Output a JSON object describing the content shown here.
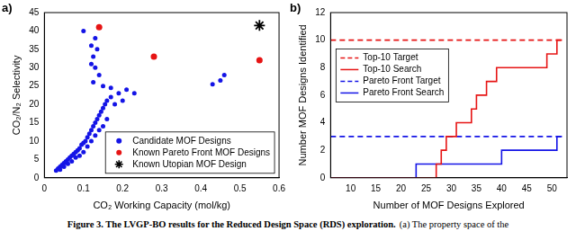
{
  "caption": {
    "bold": "Figure 3. The LVGP-BO results for the Reduced Design Space (RDS) exploration.",
    "text": "(a) The property space of the"
  },
  "chart_data": [
    {
      "type": "scatter",
      "panel_label": "a)",
      "x_label": "CO₂ Working Capacity (mol/kg)",
      "y_label": "CO₂/N₂ Selectivity",
      "xlim": [
        0,
        0.6
      ],
      "xticks": [
        0,
        0.1,
        0.2,
        0.3,
        0.4,
        0.5,
        0.6
      ],
      "ylim": [
        0,
        45
      ],
      "yticks": [
        0,
        5,
        10,
        15,
        20,
        25,
        30,
        35,
        40,
        45
      ],
      "grid": false,
      "legend": "lower right",
      "series": [
        {
          "name": "Candidate MOF Designs",
          "color": "#1414e6",
          "marker": "circle",
          "x": [
            0.03,
            0.035,
            0.04,
            0.04,
            0.045,
            0.05,
            0.05,
            0.055,
            0.06,
            0.06,
            0.065,
            0.07,
            0.07,
            0.075,
            0.08,
            0.08,
            0.085,
            0.09,
            0.09,
            0.095,
            0.1,
            0.1,
            0.105,
            0.11,
            0.11,
            0.115,
            0.12,
            0.12,
            0.125,
            0.13,
            0.13,
            0.135,
            0.14,
            0.14,
            0.145,
            0.15,
            0.15,
            0.155,
            0.16,
            0.16,
            0.17,
            0.18,
            0.19,
            0.2,
            0.21,
            0.23,
            0.1,
            0.12,
            0.125,
            0.13,
            0.135,
            0.13,
            0.12,
            0.14,
            0.125,
            0.43,
            0.45,
            0.46,
            0.15,
            0.17
          ],
          "values": [
            2,
            2.5,
            3,
            2.2,
            3.5,
            4,
            3,
            4.5,
            5,
            3.8,
            5.5,
            6,
            4.5,
            6.5,
            7,
            5.5,
            7.5,
            8,
            6,
            9,
            9.5,
            7,
            10,
            11,
            8.5,
            12,
            13,
            10,
            14,
            15,
            11.5,
            16,
            17,
            13,
            18,
            19,
            14,
            20,
            21,
            16,
            22,
            20,
            23,
            21,
            24,
            23,
            40,
            36,
            33,
            38,
            35,
            30,
            31,
            28,
            26,
            25.5,
            26.5,
            28,
            25,
            24.5
          ]
        },
        {
          "name": "Known Pareto Front MOF Designs",
          "color": "#e61414",
          "marker": "circle",
          "x": [
            0.14,
            0.28,
            0.55
          ],
          "values": [
            41,
            33,
            32
          ]
        },
        {
          "name": "Known Utopian MOF Design",
          "color": "#000000",
          "marker": "star",
          "x": [
            0.55
          ],
          "values": [
            41.5
          ]
        }
      ]
    },
    {
      "type": "line",
      "panel_label": "b)",
      "x_label": "Number of MOF Designs Explored",
      "y_label": "Number MOF Designs Identified",
      "xlim": [
        6,
        53
      ],
      "xticks": [
        10,
        15,
        20,
        25,
        30,
        35,
        40,
        45,
        50
      ],
      "ylim": [
        0,
        12
      ],
      "yticks": [
        0,
        2,
        4,
        6,
        8,
        10,
        12
      ],
      "grid": false,
      "legend": "upper left",
      "x": [
        6,
        7,
        8,
        9,
        10,
        11,
        12,
        13,
        14,
        15,
        16,
        17,
        18,
        19,
        20,
        21,
        22,
        23,
        24,
        25,
        26,
        27,
        28,
        29,
        30,
        31,
        32,
        33,
        34,
        35,
        36,
        37,
        38,
        39,
        40,
        41,
        42,
        43,
        44,
        45,
        46,
        47,
        48,
        49,
        50,
        51,
        52
      ],
      "series": [
        {
          "name": "Top-10 Target",
          "color": "#e61414",
          "line_style": "dashed",
          "values": [
            10,
            10,
            10,
            10,
            10,
            10,
            10,
            10,
            10,
            10,
            10,
            10,
            10,
            10,
            10,
            10,
            10,
            10,
            10,
            10,
            10,
            10,
            10,
            10,
            10,
            10,
            10,
            10,
            10,
            10,
            10,
            10,
            10,
            10,
            10,
            10,
            10,
            10,
            10,
            10,
            10,
            10,
            10,
            10,
            10,
            10,
            10
          ]
        },
        {
          "name": "Top-10 Search",
          "color": "#e61414",
          "line_style": "solid",
          "values": [
            0,
            0,
            0,
            0,
            0,
            0,
            0,
            0,
            0,
            0,
            0,
            0,
            0,
            0,
            0,
            0,
            0,
            0,
            0,
            0,
            0,
            1,
            2,
            3,
            3,
            4,
            4,
            4,
            5,
            6,
            6,
            7,
            7,
            8,
            8,
            8,
            8,
            8,
            8,
            8,
            8,
            8,
            8,
            9,
            9,
            10,
            10
          ]
        },
        {
          "name": "Pareto Front Target",
          "color": "#1414e6",
          "line_style": "dashed",
          "values": [
            3,
            3,
            3,
            3,
            3,
            3,
            3,
            3,
            3,
            3,
            3,
            3,
            3,
            3,
            3,
            3,
            3,
            3,
            3,
            3,
            3,
            3,
            3,
            3,
            3,
            3,
            3,
            3,
            3,
            3,
            3,
            3,
            3,
            3,
            3,
            3,
            3,
            3,
            3,
            3,
            3,
            3,
            3,
            3,
            3,
            3,
            3
          ]
        },
        {
          "name": "Pareto Front Search",
          "color": "#1414e6",
          "line_style": "solid",
          "values": [
            0,
            0,
            0,
            0,
            0,
            0,
            0,
            0,
            0,
            0,
            0,
            0,
            0,
            0,
            0,
            0,
            0,
            1,
            1,
            1,
            1,
            1,
            1,
            1,
            1,
            1,
            1,
            1,
            1,
            1,
            1,
            1,
            1,
            1,
            2,
            2,
            2,
            2,
            2,
            2,
            2,
            2,
            2,
            2,
            2,
            3,
            3
          ]
        }
      ]
    }
  ]
}
